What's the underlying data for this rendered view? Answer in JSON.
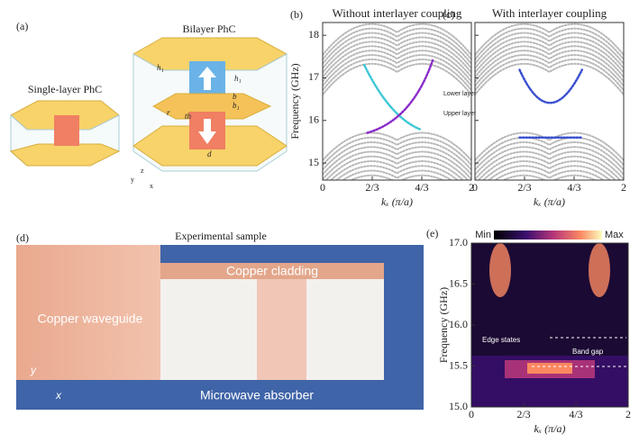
{
  "panels": {
    "a": {
      "label": "(a)",
      "title": "Bilayer PhC",
      "single": "Single-layer PhC",
      "symbols": [
        "h₁",
        "h₁",
        "b",
        "b₁",
        "r",
        "th",
        "d",
        "z",
        "y",
        "x"
      ]
    },
    "b": {
      "type": "scatter",
      "label": "(b)",
      "title": "Without interlayer coupling",
      "ylabel": "Frequency (GHz)",
      "xlabel": "kₓ (π/a)",
      "ylim": [
        14.6,
        18.3
      ],
      "yticks": [
        15,
        16,
        17,
        18
      ],
      "xlim": [
        0,
        2
      ],
      "xticks": [
        0,
        {
          "value": 0.6667,
          "label": "2/3"
        },
        {
          "value": 1.3333,
          "label": "4/3"
        },
        2
      ],
      "annotations": [
        "Lower layer",
        "Upper layer"
      ]
    },
    "c": {
      "type": "scatter",
      "label": "(c)",
      "title": "With interlayer coupling",
      "xlabel": "kₓ (π/a)",
      "ylim": [
        14.6,
        18.3
      ],
      "yticks": [
        15,
        16,
        17,
        18
      ],
      "xlim": [
        0,
        2
      ],
      "xticks": [
        0,
        {
          "value": 0.6667,
          "label": "2/3"
        },
        {
          "value": 1.3333,
          "label": "4/3"
        },
        2
      ]
    },
    "d": {
      "label": "(d)",
      "title": "Experimental sample",
      "labels": [
        "Copper cladding",
        "Copper waveguide",
        "Microwave absorber",
        "y",
        "x"
      ]
    },
    "e": {
      "type": "heatmap",
      "label": "(e)",
      "colorbar": [
        "Min",
        "Max"
      ],
      "ylabel": "Frequency (GHz)",
      "xlabel": "kₓ (π/a)",
      "ylim": [
        15,
        17
      ],
      "yticks": [
        {
          "value": 15,
          "label": "15.0"
        },
        15.5,
        {
          "value": 16,
          "label": "16.0"
        },
        16.5,
        {
          "value": 17,
          "label": "17.0"
        }
      ],
      "xlim": [
        0,
        2
      ],
      "xticks": [
        0,
        {
          "value": 0.6667,
          "label": "2/3"
        },
        {
          "value": 1.3333,
          "label": "4/3"
        },
        2
      ],
      "annotations": [
        "Edge states",
        "Band gap"
      ]
    }
  }
}
